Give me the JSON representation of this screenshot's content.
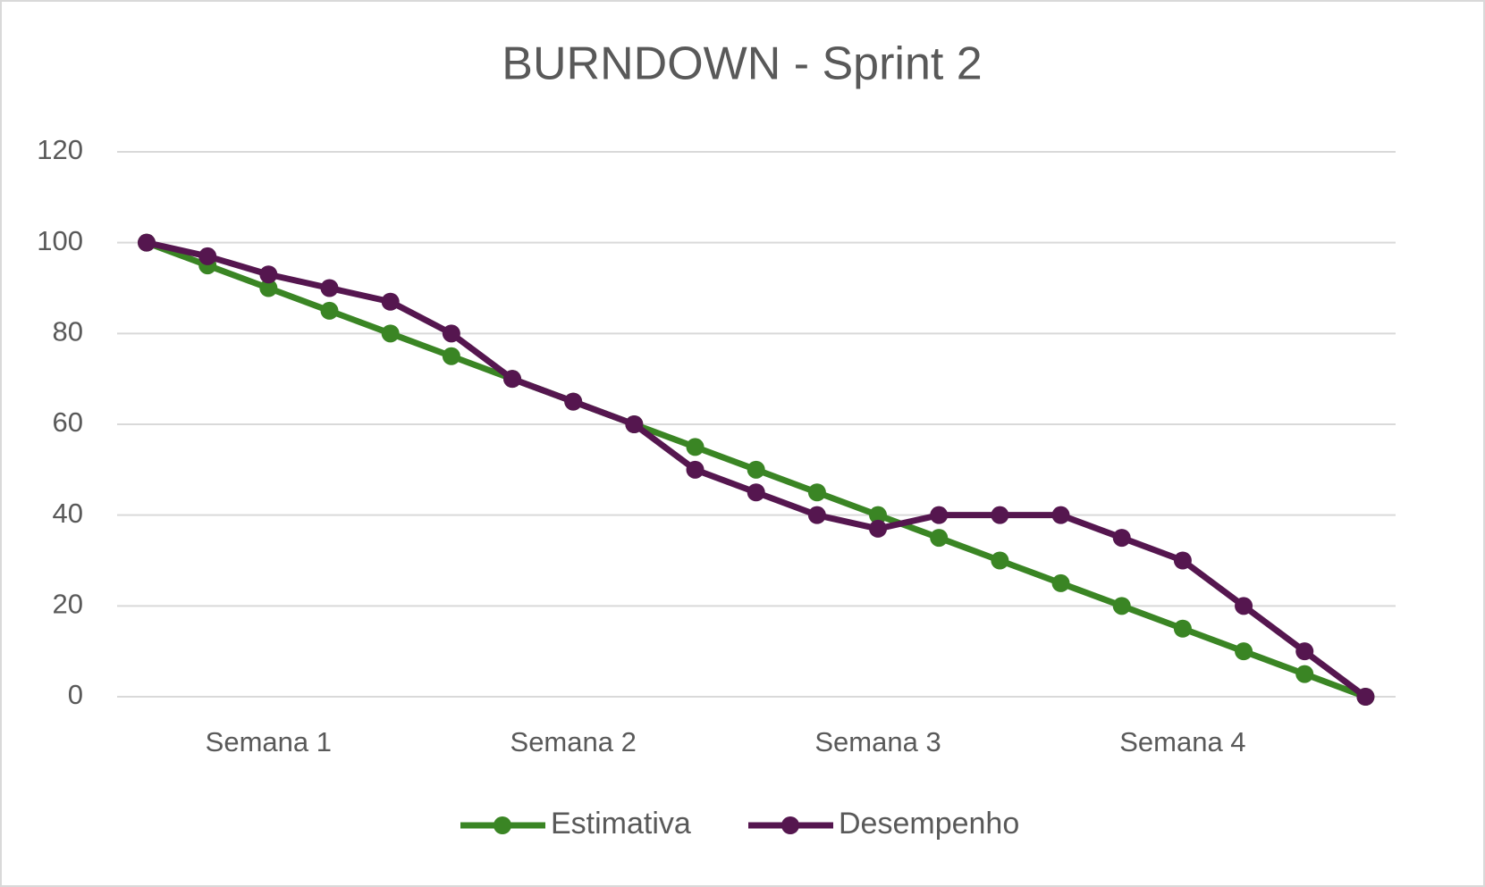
{
  "chart_data": {
    "type": "line",
    "title": "BURNDOWN - Sprint 2",
    "categories": [
      null,
      null,
      "Semana 1",
      null,
      null,
      null,
      null,
      "Semana 2",
      null,
      null,
      null,
      null,
      "Semana 3",
      null,
      null,
      null,
      null,
      "Semana 4",
      null,
      null,
      null
    ],
    "series": [
      {
        "name": "Estimativa",
        "color": "#3a8524",
        "values": [
          100,
          95,
          90,
          85,
          80,
          75,
          70,
          65,
          60,
          55,
          50,
          45,
          40,
          35,
          30,
          25,
          20,
          15,
          10,
          5,
          0
        ]
      },
      {
        "name": "Desempenho",
        "color": "#55164f",
        "values": [
          100,
          97,
          93,
          90,
          87,
          80,
          70,
          65,
          60,
          50,
          45,
          40,
          37,
          40,
          40,
          40,
          35,
          30,
          20,
          10,
          0
        ]
      }
    ],
    "ylim": [
      0,
      120
    ],
    "yticks": [
      0,
      20,
      40,
      60,
      80,
      100,
      120
    ],
    "grid": true,
    "legend": "bottom"
  }
}
